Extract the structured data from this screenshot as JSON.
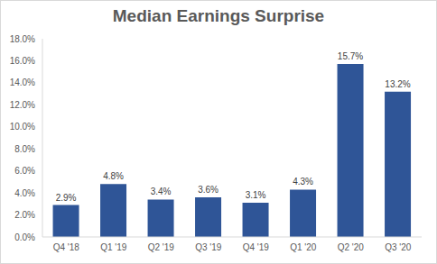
{
  "chart_data": {
    "type": "bar",
    "title": "Median Earnings Surprise",
    "categories": [
      "Q4 '18",
      "Q1 '19",
      "Q2 '19",
      "Q3 '19",
      "Q4 '19",
      "Q1 '20",
      "Q2 '20",
      "Q3 '20"
    ],
    "values": [
      2.9,
      4.8,
      3.4,
      3.6,
      3.1,
      4.3,
      15.7,
      13.2
    ],
    "value_labels": [
      "2.9%",
      "4.8%",
      "3.4%",
      "3.6%",
      "3.1%",
      "4.3%",
      "15.7%",
      "13.2%"
    ],
    "color": "#2f5597",
    "ylim": [
      0,
      18
    ],
    "yticks": [
      {
        "value": 0,
        "label": "0.0%"
      },
      {
        "value": 2,
        "label": "2.0%"
      },
      {
        "value": 4,
        "label": "4.0%"
      },
      {
        "value": 6,
        "label": "6.0%"
      },
      {
        "value": 8,
        "label": "8.0%"
      },
      {
        "value": 10,
        "label": "10.0%"
      },
      {
        "value": 12,
        "label": "12.0%"
      },
      {
        "value": 14,
        "label": "14.0%"
      },
      {
        "value": 16,
        "label": "16.0%"
      },
      {
        "value": 18,
        "label": "18.0%"
      }
    ],
    "grid": false,
    "data_labels": true
  }
}
